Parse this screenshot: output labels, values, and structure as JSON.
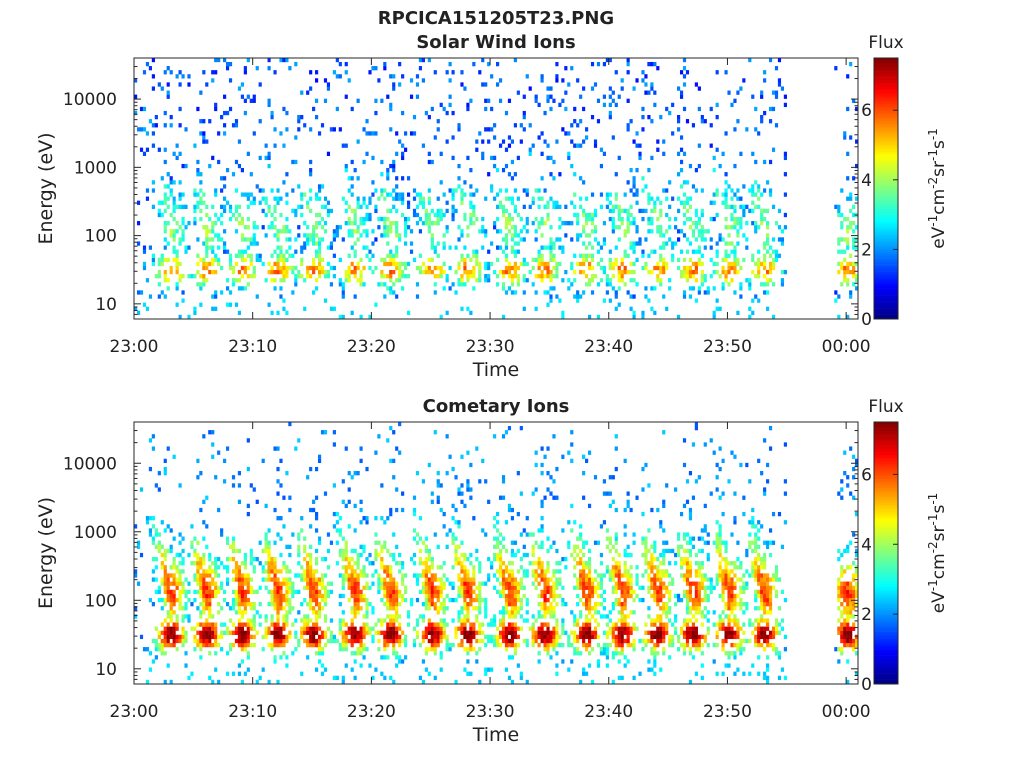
{
  "figure_title": "RPCICA151205T23.PNG",
  "chart_data": [
    {
      "type": "heatmap",
      "title": "Solar Wind Ions",
      "xlabel": "Time",
      "ylabel": "Energy (eV)",
      "x_ticks": [
        "23:00",
        "23:10",
        "23:20",
        "23:30",
        "23:40",
        "23:50",
        "00:00"
      ],
      "x_range": [
        "23:00",
        "00:01"
      ],
      "y_scale": "log",
      "y_ticks": [
        10,
        100,
        1000,
        10000
      ],
      "y_tick_labels": [
        "10",
        "100",
        "1000",
        "10000"
      ],
      "y_range": [
        6,
        40000
      ],
      "colorbar": {
        "title": "Flux",
        "label": "eV-1cm-2sr-1s-1",
        "ticks": [
          0,
          2,
          4,
          6
        ],
        "range": [
          0,
          7.5
        ],
        "colormap": "jet"
      },
      "data_gap": [
        "23:55",
        "23:59"
      ],
      "pulse_centers_min": [
        3,
        6,
        9,
        12,
        15,
        18.5,
        21.5,
        25,
        28,
        31.5,
        34.5,
        38,
        41,
        44,
        47,
        50,
        53
      ],
      "peak_flux": 5.8,
      "peak_energy_eV": 30
    },
    {
      "type": "heatmap",
      "title": "Cometary Ions",
      "xlabel": "Time",
      "ylabel": "Energy (eV)",
      "x_ticks": [
        "23:00",
        "23:10",
        "23:20",
        "23:30",
        "23:40",
        "23:50",
        "00:00"
      ],
      "x_range": [
        "23:00",
        "00:01"
      ],
      "y_scale": "log",
      "y_ticks": [
        10,
        100,
        1000,
        10000
      ],
      "y_tick_labels": [
        "10",
        "100",
        "1000",
        "10000"
      ],
      "y_range": [
        6,
        40000
      ],
      "colorbar": {
        "title": "Flux",
        "label": "eV-1cm-2sr-1s-1",
        "ticks": [
          0,
          2,
          4,
          6
        ],
        "range": [
          0,
          7.5
        ],
        "colormap": "jet"
      },
      "data_gap": [
        "23:55",
        "23:59"
      ],
      "pulse_centers_min": [
        3,
        6,
        9,
        12,
        15,
        18.5,
        21.5,
        25,
        28,
        31.5,
        34.5,
        38,
        41,
        44,
        47,
        50,
        53
      ],
      "peak_flux": 6.6,
      "peak_energy_eV": 30
    }
  ]
}
